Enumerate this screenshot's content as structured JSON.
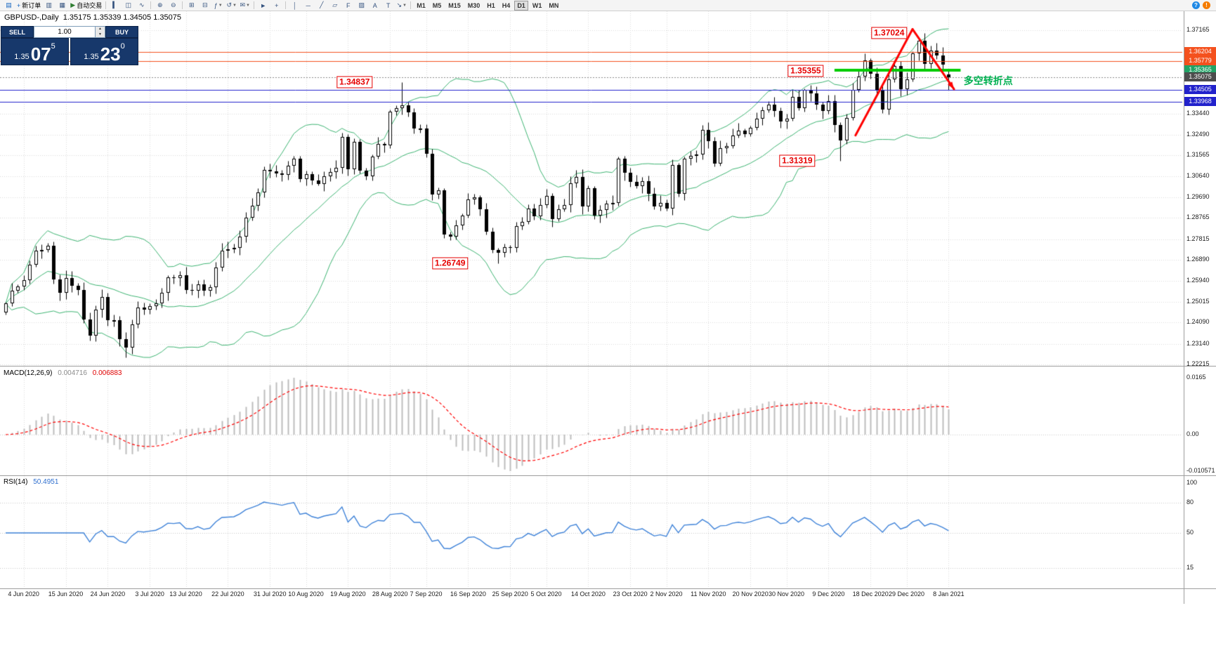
{
  "header": {
    "symbol": "GBPUSD-,Daily",
    "ohlc": "1.35175 1.35339 1.34505 1.35075"
  },
  "toolbar": {
    "items": [
      {
        "name": "chart-window-icon",
        "glyph": "▤",
        "color": "#1565c0"
      },
      {
        "name": "new-order-button",
        "glyph": "+",
        "color": "#1565c0",
        "label": "新订单"
      },
      {
        "name": "chart-profiles-icon",
        "glyph": "▥"
      },
      {
        "name": "data-window-icon",
        "glyph": "▦"
      },
      {
        "name": "auto-trading-button",
        "glyph": "▶",
        "color": "#2e7d32",
        "label": "自动交易"
      },
      {
        "sep": true
      },
      {
        "name": "bar-chart-icon",
        "glyph": "▍"
      },
      {
        "name": "candlestick-chart-icon",
        "glyph": "◫"
      },
      {
        "name": "line-chart-icon",
        "glyph": "∿"
      },
      {
        "sep": true
      },
      {
        "name": "zoom-in-icon",
        "glyph": "⊕"
      },
      {
        "name": "zoom-out-icon",
        "glyph": "⊖"
      },
      {
        "sep": true
      },
      {
        "name": "tile-windows-icon",
        "glyph": "⊞"
      },
      {
        "name": "auto-arrange-icon",
        "glyph": "⊟"
      },
      {
        "name": "indicators-icon",
        "glyph": "ƒ",
        "caret": true
      },
      {
        "name": "periods-icon",
        "glyph": "↺",
        "caret": true
      },
      {
        "name": "templates-icon",
        "glyph": "✉",
        "caret": true
      },
      {
        "sep": true
      },
      {
        "name": "cursor-icon",
        "glyph": "►"
      },
      {
        "name": "crosshair-icon",
        "glyph": "+"
      },
      {
        "sep": true
      },
      {
        "name": "vertical-line-icon",
        "glyph": "│"
      },
      {
        "name": "horizontal-line-icon",
        "glyph": "─"
      },
      {
        "name": "trendline-icon",
        "glyph": "╱"
      },
      {
        "name": "channel-icon",
        "glyph": "▱"
      },
      {
        "name": "fibonacci-icon",
        "glyph": "F"
      },
      {
        "name": "shapes-icon",
        "glyph": "▨"
      },
      {
        "name": "text-icon",
        "glyph": "A"
      },
      {
        "name": "text-label-icon",
        "glyph": "T"
      },
      {
        "name": "arrows-icon",
        "glyph": "↘",
        "caret": true
      },
      {
        "sep": true
      }
    ],
    "timeframes": [
      {
        "label": "M1"
      },
      {
        "label": "M5"
      },
      {
        "label": "M15"
      },
      {
        "label": "M30"
      },
      {
        "label": "H1"
      },
      {
        "label": "H4"
      },
      {
        "label": "D1",
        "active": true
      },
      {
        "label": "W1"
      },
      {
        "label": "MN"
      }
    ],
    "right_icons": [
      {
        "name": "help-icon",
        "glyph": "?",
        "bg": "#1e88e5"
      },
      {
        "name": "alerts-icon",
        "glyph": "!",
        "bg": "#f57c00"
      }
    ]
  },
  "trade_panel": {
    "sell_label": "SELL",
    "buy_label": "BUY",
    "volume": "1.00",
    "sell_price": {
      "prefix": "1.35",
      "big": "07",
      "sup": "5"
    },
    "buy_price": {
      "prefix": "1.35",
      "big": "23",
      "sup": "0"
    }
  },
  "chart_data": {
    "type": "candlestick",
    "symbol": "GBPUSD-",
    "timeframe": "Daily",
    "closes": [
      1.2494,
      1.2552,
      1.2571,
      1.2598,
      1.2668,
      1.2731,
      1.2734,
      1.2753,
      1.2601,
      1.2541,
      1.2607,
      1.2574,
      1.2553,
      1.2423,
      1.235,
      1.2466,
      1.2523,
      1.242,
      1.242,
      1.2336,
      1.2297,
      1.24,
      1.2477,
      1.2467,
      1.2482,
      1.2495,
      1.2541,
      1.2612,
      1.2608,
      1.2621,
      1.2554,
      1.255,
      1.2581,
      1.2552,
      1.2566,
      1.2655,
      1.273,
      1.2736,
      1.2742,
      1.2793,
      1.2878,
      1.2931,
      1.299,
      1.3093,
      1.3084,
      1.3077,
      1.3068,
      1.311,
      1.3143,
      1.305,
      1.3073,
      1.3043,
      1.303,
      1.3063,
      1.3083,
      1.3102,
      1.3238,
      1.3095,
      1.3216,
      1.3087,
      1.3063,
      1.3151,
      1.3208,
      1.3201,
      1.3351,
      1.3369,
      1.3382,
      1.335,
      1.3277,
      1.3278,
      1.3164,
      1.298,
      1.3,
      1.2803,
      1.2794,
      1.2843,
      1.2886,
      1.296,
      1.297,
      1.2915,
      1.2815,
      1.2732,
      1.2721,
      1.2745,
      1.2743,
      1.2841,
      1.286,
      1.292,
      1.2885,
      1.2933,
      1.2976,
      1.2871,
      1.2916,
      1.2934,
      1.3033,
      1.3061,
      1.2928,
      1.301,
      1.2888,
      1.2913,
      1.2942,
      1.2943,
      1.3141,
      1.308,
      1.3037,
      1.3018,
      1.3041,
      1.2984,
      1.2927,
      1.2945,
      1.2919,
      1.3113,
      1.2984,
      1.3143,
      1.3153,
      1.316,
      1.3271,
      1.322,
      1.312,
      1.3189,
      1.3197,
      1.3246,
      1.3266,
      1.3253,
      1.328,
      1.3321,
      1.3358,
      1.3384,
      1.3355,
      1.3309,
      1.3322,
      1.3419,
      1.3367,
      1.3448,
      1.3435,
      1.3383,
      1.3354,
      1.3398,
      1.3291,
      1.3222,
      1.3323,
      1.345,
      1.3508,
      1.358,
      1.3521,
      1.3451,
      1.3361,
      1.3496,
      1.3557,
      1.3452,
      1.3496,
      1.3613,
      1.3668,
      1.3567,
      1.3626,
      1.3605,
      1.3562,
      1.35075
    ],
    "key_points": {
      "20": {
        "low": 1.22516
      },
      "66": {
        "high": 1.34837
      },
      "82": {
        "low": 1.26749
      },
      "139": {
        "low": 1.31319
      },
      "153": {
        "high": 1.37024
      },
      "157": {
        "open": 1.35175,
        "high": 1.35339,
        "low": 1.34505,
        "close": 1.35075
      }
    },
    "bollinger": {
      "period": 20,
      "deviation": 2,
      "color": "#3CB371"
    },
    "x_labels": [
      {
        "text": "4 Jun 2020",
        "i": 3
      },
      {
        "text": "15 Jun 2020",
        "i": 10
      },
      {
        "text": "24 Jun 2020",
        "i": 17
      },
      {
        "text": "3 Jul 2020",
        "i": 24
      },
      {
        "text": "13 Jul 2020",
        "i": 30
      },
      {
        "text": "22 Jul 2020",
        "i": 37
      },
      {
        "text": "31 Jul 2020",
        "i": 44
      },
      {
        "text": "10 Aug 2020",
        "i": 50
      },
      {
        "text": "19 Aug 2020",
        "i": 57
      },
      {
        "text": "28 Aug 2020",
        "i": 64
      },
      {
        "text": "7 Sep 2020",
        "i": 70
      },
      {
        "text": "16 Sep 2020",
        "i": 77
      },
      {
        "text": "25 Sep 2020",
        "i": 84
      },
      {
        "text": "5 Oct 2020",
        "i": 90
      },
      {
        "text": "14 Oct 2020",
        "i": 97
      },
      {
        "text": "23 Oct 2020",
        "i": 104
      },
      {
        "text": "2 Nov 2020",
        "i": 110
      },
      {
        "text": "11 Nov 2020",
        "i": 117
      },
      {
        "text": "20 Nov 2020",
        "i": 124
      },
      {
        "text": "30 Nov 2020",
        "i": 130
      },
      {
        "text": "9 Dec 2020",
        "i": 137
      },
      {
        "text": "18 Dec 2020",
        "i": 144
      },
      {
        "text": "29 Dec 2020",
        "i": 150
      },
      {
        "text": "8 Jan 2021",
        "i": 157
      }
    ],
    "y_axis": {
      "grid_labels": [
        "1.37165",
        "1.33440",
        "1.32490",
        "1.31565",
        "1.30640",
        "1.29690",
        "1.28765",
        "1.27815",
        "1.26890",
        "1.25940",
        "1.25015",
        "1.24090",
        "1.23140",
        "1.22215"
      ],
      "badges": [
        {
          "text": "1.36204",
          "bg": "#f4511e"
        },
        {
          "text": "1.35779",
          "bg": "#f4511e"
        },
        {
          "text": "1.35365",
          "bg": "#21a366"
        },
        {
          "text": "1.35075",
          "bg": "#4d4d4d"
        },
        {
          "text": "1.34505",
          "bg": "#2222cc"
        },
        {
          "text": "1.33968",
          "bg": "#2222cc"
        }
      ]
    },
    "hlines": [
      {
        "price": 1.36204,
        "color": "#f4511e",
        "style": "solid"
      },
      {
        "price": 1.35779,
        "color": "#f4511e",
        "style": "solid"
      },
      {
        "price": 1.35075,
        "color": "#8a8a8a",
        "style": "dot"
      },
      {
        "price": 1.34505,
        "color": "#2222cc",
        "style": "solid"
      },
      {
        "price": 1.33968,
        "color": "#2222cc",
        "style": "solid"
      }
    ],
    "drawings": {
      "support_line": {
        "price": 1.35365,
        "from_i": 138,
        "to_i": 159,
        "color": "#00cc00",
        "width": 4
      },
      "trend_color": "#ff0000",
      "trendlines": [
        {
          "x1_i": 141.5,
          "p1": 1.3246,
          "x2_i": 151,
          "p2": 1.3721
        },
        {
          "x1_i": 151,
          "p1": 1.3721,
          "x2_i": 157.9,
          "p2": 1.3453,
          "arrow": true
        }
      ],
      "price_labels": [
        {
          "text": "1.37024",
          "i": 147.1,
          "price": 1.37024
        },
        {
          "text": "1.35355",
          "i": 133.2,
          "price": 1.35355
        },
        {
          "text": "1.34837",
          "i": 58.1,
          "price": 1.34837
        },
        {
          "text": "1.31319",
          "i": 131.8,
          "price": 1.31319
        },
        {
          "text": "1.26749",
          "i": 74.0,
          "price": 1.26749
        }
      ],
      "text_label": {
        "text": "多空转折点",
        "i": 159.5,
        "price": 1.3492,
        "color": "#00b050"
      }
    },
    "macd": {
      "label": "MACD(12,26,9)",
      "value_main": "0.004716",
      "value_signal": "0.006883",
      "params": {
        "fast": 12,
        "slow": 26,
        "signal": 9
      },
      "scale_labels": [
        "0.0165",
        "0.00",
        "-0.010571"
      ],
      "hist_color": "#bdbdbd",
      "signal_color": "#ff0000"
    },
    "rsi": {
      "label": "RSI(14)",
      "value": "50.4951",
      "period": 14,
      "axis_labels": [
        {
          "text": "100",
          "v": 100
        },
        {
          "text": "80",
          "v": 80
        },
        {
          "text": "50",
          "v": 50
        },
        {
          "text": "15",
          "v": 15
        }
      ],
      "levels": [
        80,
        50,
        15
      ],
      "line_color": "#3e82d8"
    }
  }
}
